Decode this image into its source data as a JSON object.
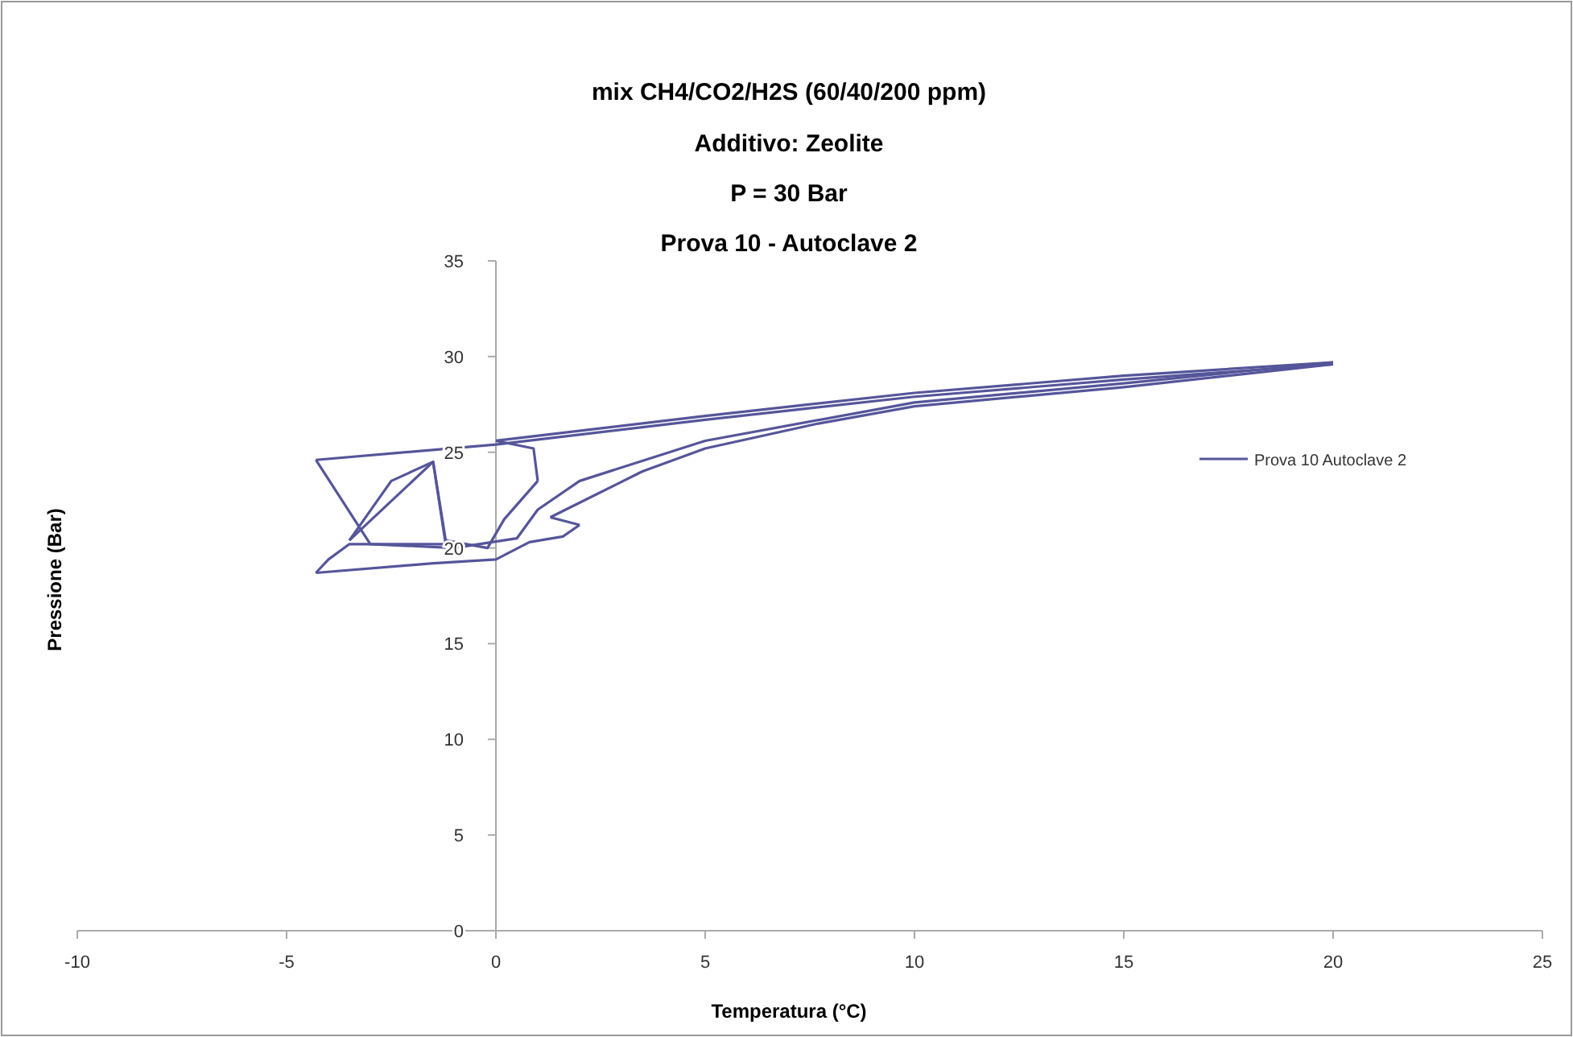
{
  "chart_data": {
    "type": "line",
    "title": "mix CH4/CO2/H2S (60/40/200 ppm)",
    "subtitle": "Additivo: Zeolite\nP = 30 Bar\nProva 10 - Autoclave 2",
    "xlabel": "Temperatura (°C)",
    "ylabel": "Pressione (Bar)",
    "xlim": [
      -10,
      25
    ],
    "xticks": [
      -10,
      -5,
      0,
      5,
      10,
      15,
      20,
      25
    ],
    "ylim": [
      0,
      35
    ],
    "yticks": [
      0,
      5,
      10,
      15,
      20,
      25,
      30,
      35
    ],
    "grid": false,
    "legend": "right",
    "marker": "none",
    "line_style": "solid",
    "series": [
      {
        "name": "Prova 10 Autoclave 2",
        "color": "#55559a",
        "x": [
          -4.3,
          0,
          5,
          10,
          15,
          20
        ],
        "values": [
          24.6,
          25.4,
          26.7,
          27.9,
          28.8,
          29.6
        ]
      },
      {
        "color": "#55559a",
        "x": [
          20,
          15,
          10,
          7.7,
          5,
          3.5,
          2.4,
          1.3
        ],
        "values": [
          29.6,
          28.4,
          27.4,
          26.5,
          25.2,
          24.0,
          22.8,
          21.6
        ]
      },
      {
        "color": "#55559a",
        "x": [
          1.3,
          2
        ],
        "values": [
          21.6,
          21.2
        ]
      },
      {
        "color": "#55559a",
        "x": [
          2,
          1.6,
          0.8,
          0,
          -1.5,
          -4.3
        ],
        "values": [
          21.2,
          20.6,
          20.3,
          19.4,
          19.2,
          18.7
        ]
      },
      {
        "color": "#55559a",
        "x": [
          -4.3,
          -4,
          -3.5,
          -1.2
        ],
        "values": [
          18.7,
          19.4,
          20.2,
          20.2
        ]
      },
      {
        "color": "#55559a",
        "x": [
          -1.2,
          -1.5,
          -2.5,
          -3.5
        ],
        "values": [
          20.2,
          24.5,
          23.5,
          20.4
        ]
      },
      {
        "color": "#55559a",
        "x": [
          -3.5,
          -1.5,
          -1.2,
          -0.2,
          0.2,
          1
        ],
        "values": [
          20.4,
          24.5,
          20.4,
          20.0,
          21.5,
          23.5
        ]
      },
      {
        "color": "#55559a",
        "x": [
          1,
          0.9,
          0
        ],
        "values": [
          23.5,
          25.2,
          25.6
        ]
      },
      {
        "color": "#55559a",
        "x": [
          0,
          5,
          10,
          15,
          20
        ],
        "values": [
          25.6,
          26.9,
          28.1,
          29.0,
          29.7
        ]
      },
      {
        "color": "#55559a",
        "x": [
          20,
          15,
          10,
          5,
          2,
          1,
          0.5,
          -1,
          -3,
          -4.3
        ],
        "values": [
          29.7,
          28.6,
          27.6,
          25.6,
          23.5,
          22.0,
          20.5,
          20.0,
          20.2,
          24.6
        ]
      }
    ]
  }
}
